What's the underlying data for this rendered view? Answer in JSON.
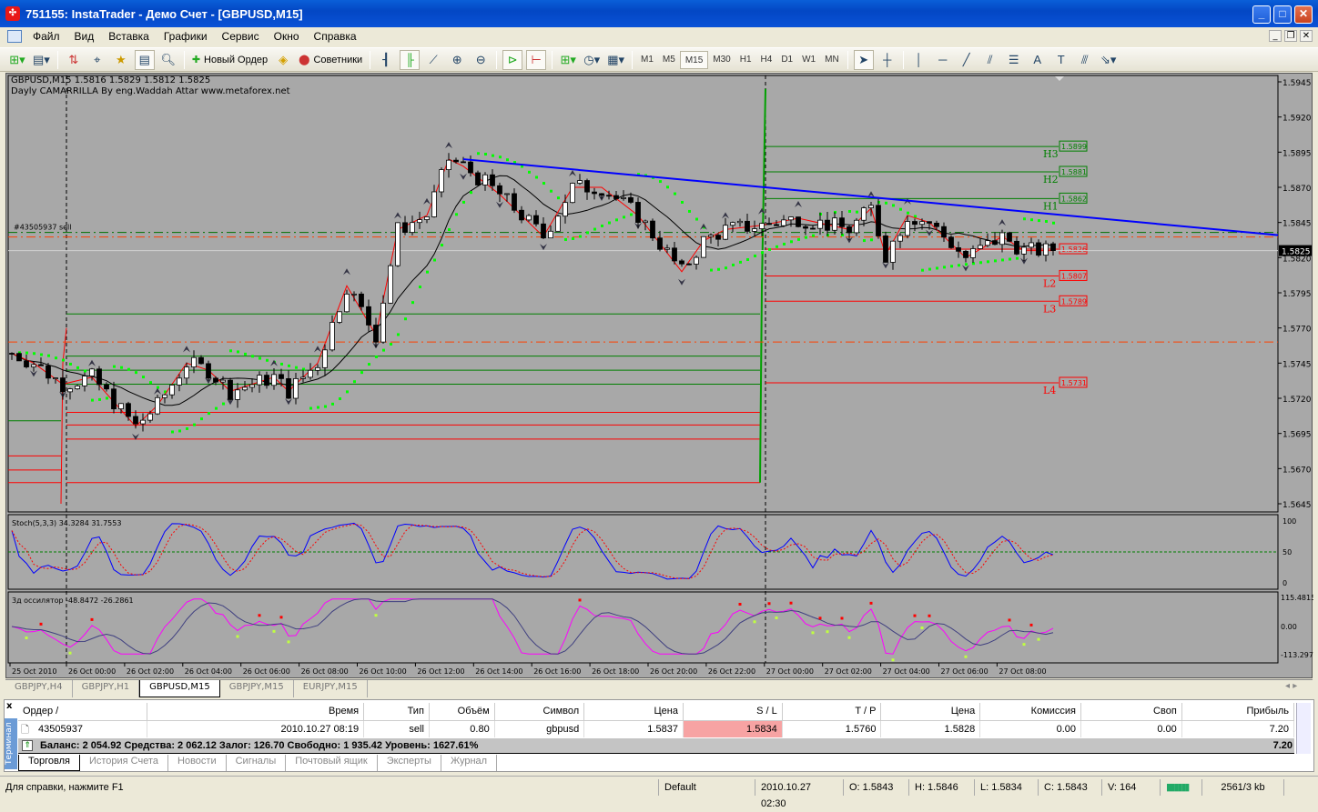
{
  "window": {
    "title": "751155: InstaTrader - Демо Счет - [GBPUSD,M15]"
  },
  "menu": [
    "Файл",
    "Вид",
    "Вставка",
    "Графики",
    "Сервис",
    "Окно",
    "Справка"
  ],
  "toolbar": {
    "new_order": "Новый Ордер",
    "experts": "Советники",
    "timeframes": [
      "M1",
      "M5",
      "M15",
      "M30",
      "H1",
      "H4",
      "D1",
      "W1",
      "MN"
    ],
    "active_timeframe": "M15"
  },
  "chart": {
    "info_line": "GBPUSD,M15  1.5816 1.5829 1.5812 1.5825",
    "indicator_line": "Dayly CAMARRILLA By eng.Waddah Attar www.metaforex.net",
    "order_label": "#43505937 sell",
    "price_axis": [
      "1.5945",
      "1.5920",
      "1.5895",
      "1.5870",
      "1.5845",
      "1.5820",
      "1.5795",
      "1.5770",
      "1.5745",
      "1.5720",
      "1.5695",
      "1.5670",
      "1.5645"
    ],
    "price_range": [
      1.5645,
      1.5945
    ],
    "current_price": "1.5825",
    "camarilla_today": [
      {
        "name": "H3",
        "value": "1.5899",
        "color": "#008000"
      },
      {
        "name": "H2",
        "value": "1.5881",
        "color": "#008000"
      },
      {
        "name": "H1",
        "value": "1.5862",
        "color": "#008000"
      },
      {
        "name": "L1",
        "value": "1.5826",
        "color": "#ff0000"
      },
      {
        "name": "L2",
        "value": "1.5807",
        "color": "#ff0000"
      },
      {
        "name": "L3",
        "value": "1.5789",
        "color": "#ff0000"
      },
      {
        "name": "L4",
        "value": "1.5731",
        "color": "#ff0000"
      }
    ],
    "camarilla_prev": [
      1.578,
      1.575,
      1.574,
      1.573,
      1.571,
      1.5701,
      1.5691,
      1.566
    ],
    "order_price": 1.5836,
    "tp_price": 1.576,
    "trendline": {
      "from": {
        "bar": 62,
        "price": 1.589
      },
      "to": {
        "bar": 174,
        "price": 1.5836
      },
      "color": "#0000ff"
    },
    "price_path": [
      [
        0,
        1.5752
      ],
      [
        3,
        1.5745
      ],
      [
        7,
        1.573
      ],
      [
        11,
        1.5735
      ],
      [
        17,
        1.57
      ],
      [
        20,
        1.5715
      ],
      [
        24,
        1.5745
      ],
      [
        27,
        1.574
      ],
      [
        30,
        1.5725
      ],
      [
        36,
        1.5735
      ],
      [
        38,
        1.5725
      ],
      [
        42,
        1.5745
      ],
      [
        46,
        1.58
      ],
      [
        50,
        1.5765
      ],
      [
        53,
        1.584
      ],
      [
        57,
        1.585
      ],
      [
        60,
        1.589
      ],
      [
        62,
        1.5885
      ],
      [
        67,
        1.5865
      ],
      [
        73,
        1.5835
      ],
      [
        77,
        1.587
      ],
      [
        81,
        1.587
      ],
      [
        86,
        1.585
      ],
      [
        92,
        1.581
      ],
      [
        95,
        1.5832
      ],
      [
        98,
        1.584
      ],
      [
        103,
        1.5843
      ],
      [
        108,
        1.5848
      ],
      [
        115,
        1.584
      ],
      [
        118,
        1.5855
      ],
      [
        120,
        1.5822
      ],
      [
        123,
        1.585
      ],
      [
        126,
        1.5845
      ],
      [
        131,
        1.582
      ],
      [
        136,
        1.5835
      ],
      [
        139,
        1.5825
      ],
      [
        143,
        1.5825
      ]
    ],
    "time_labels": [
      "25 Oct 2010",
      "26 Oct 00:00",
      "26 Oct 02:00",
      "26 Oct 04:00",
      "26 Oct 06:00",
      "26 Oct 08:00",
      "26 Oct 10:00",
      "26 Oct 12:00",
      "26 Oct 14:00",
      "26 Oct 16:00",
      "26 Oct 18:00",
      "26 Oct 20:00",
      "26 Oct 22:00",
      "27 Oct 00:00",
      "27 Oct 02:00",
      "27 Oct 04:00",
      "27 Oct 06:00",
      "27 Oct 08:00"
    ],
    "stoch": {
      "label": "Stoch(5,3,3) 34.3284 31.7553",
      "axis": [
        "100",
        "50",
        "0"
      ]
    },
    "osc": {
      "label": "3д оссилятор -48.8472 -26.2861",
      "axis": [
        "115.4815",
        "0.00",
        "-113.297"
      ]
    }
  },
  "chart_tabs": [
    {
      "label": "GBPJPY,H4"
    },
    {
      "label": "GBPJPY,H1"
    },
    {
      "label": "GBPUSD,M15",
      "active": true
    },
    {
      "label": "GBPJPY,M15"
    },
    {
      "label": "EURJPY,M15"
    }
  ],
  "terminal": {
    "side_label": "Терминал",
    "close": "x",
    "columns": [
      "Ордер  /",
      "Время",
      "Тип",
      "Объём",
      "Символ",
      "Цена",
      "S / L",
      "T / P",
      "Цена",
      "Комиссия",
      "Своп",
      "Прибыль"
    ],
    "row": [
      "43505937",
      "2010.10.27 08:19",
      "sell",
      "0.80",
      "gbpusd",
      "1.5837",
      "1.5834",
      "1.5760",
      "1.5828",
      "0.00",
      "0.00",
      "7.20"
    ],
    "balance": "Баланс: 2 054.92  Средства: 2 062.12  Залог: 126.70  Свободно: 1 935.42  Уровень: 1627.61%",
    "total": "7.20",
    "tabs": [
      "Торговля",
      "История Счета",
      "Новости",
      "Сигналы",
      "Почтовый ящик",
      "Эксперты",
      "Журнал"
    ],
    "active_tab": "Торговля"
  },
  "status": {
    "help": "Для справки, нажмите F1",
    "profile": "Default",
    "datetime": "2010.10.27 02:30",
    "open": "O: 1.5843",
    "high": "H: 1.5846",
    "low": "L: 1.5834",
    "close": "C: 1.5843",
    "volume": "V: 164",
    "traffic": "2561/3 kb"
  }
}
